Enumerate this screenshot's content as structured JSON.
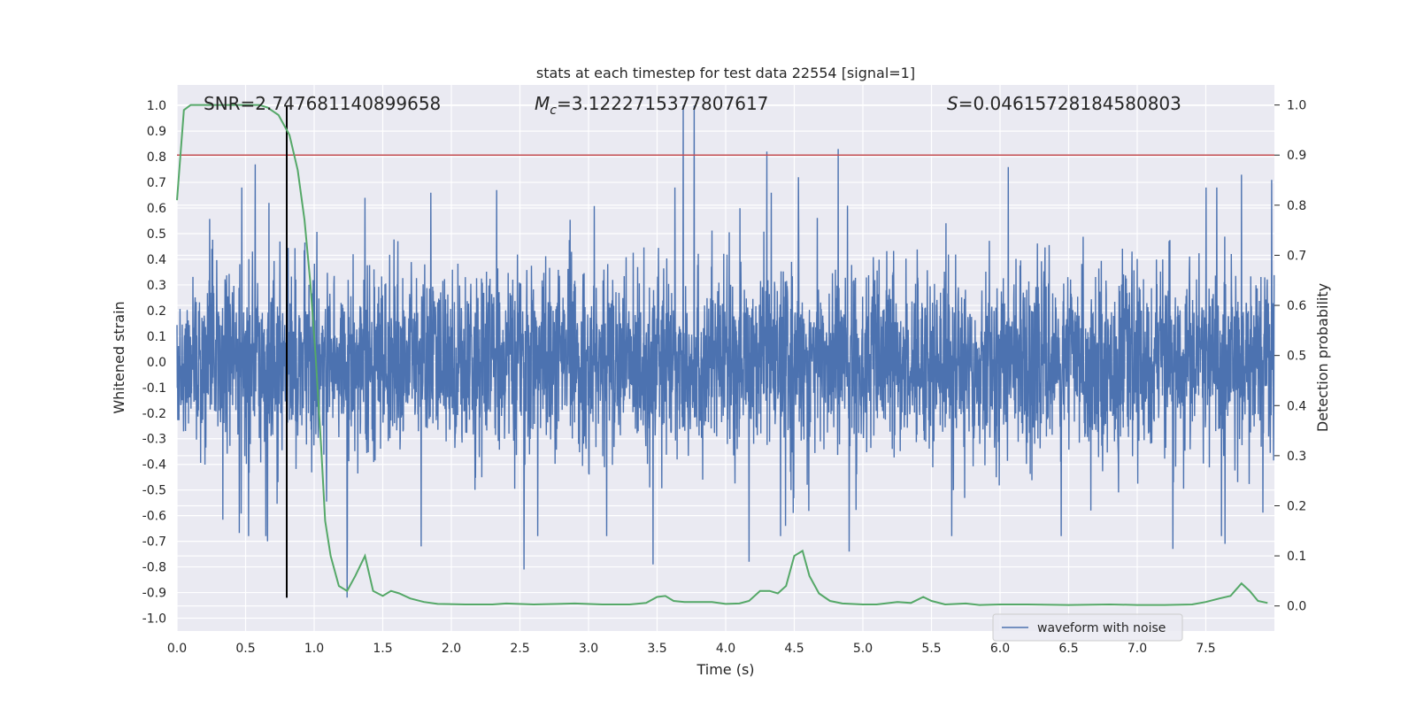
{
  "chart_data": {
    "type": "line",
    "title": "stats at each timestep for test data 22554 [signal=1]",
    "xlabel": "Time (s)",
    "ylabel": "Whitened strain",
    "y2label": "Detection probability",
    "xlim": [
      0,
      8.0
    ],
    "ylim": [
      -1.05,
      1.08
    ],
    "y2lim": [
      -0.05,
      1.04
    ],
    "xticks": [
      "0.0",
      "0.5",
      "1.0",
      "1.5",
      "2.0",
      "2.5",
      "3.0",
      "3.5",
      "4.0",
      "4.5",
      "5.0",
      "5.5",
      "6.0",
      "6.5",
      "7.0",
      "7.5"
    ],
    "yticks": [
      "-1.0",
      "-0.9",
      "-0.8",
      "-0.7",
      "-0.6",
      "-0.5",
      "-0.4",
      "-0.3",
      "-0.2",
      "-0.1",
      "0.0",
      "0.1",
      "0.2",
      "0.3",
      "0.4",
      "0.5",
      "0.6",
      "0.7",
      "0.8",
      "0.9",
      "1.0"
    ],
    "y2ticks": [
      "0.0",
      "0.1",
      "0.2",
      "0.3",
      "0.4",
      "0.5",
      "0.6",
      "0.7",
      "0.8",
      "0.9",
      "1.0"
    ],
    "grid": true,
    "legend": {
      "placement": "lower-right",
      "entries": [
        "waveform with noise"
      ]
    },
    "colors": {
      "waveform": "#4c72b0",
      "probability": "#55a868",
      "threshold": "#c44e52",
      "marker": "#000000",
      "background": "#eaeaf2",
      "grid": "#ffffff"
    },
    "annotations": {
      "snr": "SNR=2.747681140899658",
      "mc_symbol": "M",
      "mc_sub": "c",
      "mc_value": "=3.1222715377807617",
      "s_symbol": "S",
      "s_value": "=0.04615728184580803"
    },
    "threshold_probability": 0.9,
    "marker_time": 0.8,
    "series": [
      {
        "name": "waveform with noise",
        "axis": "left",
        "envelope_peaks": [
          {
            "x": 0.57,
            "y": 0.77
          },
          {
            "x": 0.67,
            "y": 0.62
          },
          {
            "x": 1.37,
            "y": 0.64
          },
          {
            "x": 1.85,
            "y": 0.66
          },
          {
            "x": 2.33,
            "y": 0.67
          },
          {
            "x": 3.69,
            "y": 1.0
          },
          {
            "x": 3.77,
            "y": 1.0
          },
          {
            "x": 3.63,
            "y": 0.68
          },
          {
            "x": 4.3,
            "y": 0.82
          },
          {
            "x": 4.53,
            "y": 0.72
          },
          {
            "x": 4.82,
            "y": 0.83
          },
          {
            "x": 6.06,
            "y": 0.76
          },
          {
            "x": 7.26,
            "y": 0.75
          },
          {
            "x": 7.76,
            "y": 0.73
          },
          {
            "x": 7.98,
            "y": 0.71
          },
          {
            "x": 0.66,
            "y": -0.7
          },
          {
            "x": 1.24,
            "y": -0.92
          },
          {
            "x": 2.53,
            "y": -0.81
          },
          {
            "x": 3.47,
            "y": -0.79
          },
          {
            "x": 4.17,
            "y": -0.78
          },
          {
            "x": 4.9,
            "y": -0.74
          },
          {
            "x": 7.26,
            "y": -0.73
          },
          {
            "x": 7.64,
            "y": -0.71
          },
          {
            "x": 1.78,
            "y": -0.72
          }
        ]
      },
      {
        "name": "",
        "axis": "right",
        "points": [
          [
            0.0,
            0.81
          ],
          [
            0.05,
            0.99
          ],
          [
            0.1,
            1.0
          ],
          [
            0.2,
            1.0
          ],
          [
            0.4,
            1.0
          ],
          [
            0.6,
            1.0
          ],
          [
            0.66,
            0.995
          ],
          [
            0.74,
            0.98
          ],
          [
            0.82,
            0.94
          ],
          [
            0.88,
            0.87
          ],
          [
            0.93,
            0.77
          ],
          [
            0.97,
            0.65
          ],
          [
            1.01,
            0.5
          ],
          [
            1.05,
            0.32
          ],
          [
            1.08,
            0.17
          ],
          [
            1.12,
            0.1
          ],
          [
            1.18,
            0.04
          ],
          [
            1.24,
            0.03
          ],
          [
            1.3,
            0.06
          ],
          [
            1.37,
            0.1
          ],
          [
            1.43,
            0.03
          ],
          [
            1.5,
            0.02
          ],
          [
            1.56,
            0.03
          ],
          [
            1.62,
            0.025
          ],
          [
            1.7,
            0.015
          ],
          [
            1.8,
            0.008
          ],
          [
            1.9,
            0.004
          ],
          [
            2.1,
            0.003
          ],
          [
            2.3,
            0.003
          ],
          [
            2.4,
            0.005
          ],
          [
            2.6,
            0.003
          ],
          [
            2.9,
            0.005
          ],
          [
            3.1,
            0.003
          ],
          [
            3.3,
            0.003
          ],
          [
            3.42,
            0.006
          ],
          [
            3.5,
            0.018
          ],
          [
            3.56,
            0.02
          ],
          [
            3.62,
            0.01
          ],
          [
            3.7,
            0.008
          ],
          [
            3.9,
            0.008
          ],
          [
            4.0,
            0.004
          ],
          [
            4.1,
            0.005
          ],
          [
            4.17,
            0.01
          ],
          [
            4.25,
            0.03
          ],
          [
            4.32,
            0.03
          ],
          [
            4.38,
            0.025
          ],
          [
            4.44,
            0.04
          ],
          [
            4.5,
            0.1
          ],
          [
            4.56,
            0.11
          ],
          [
            4.61,
            0.06
          ],
          [
            4.68,
            0.025
          ],
          [
            4.76,
            0.01
          ],
          [
            4.85,
            0.005
          ],
          [
            5.0,
            0.003
          ],
          [
            5.1,
            0.003
          ],
          [
            5.25,
            0.008
          ],
          [
            5.35,
            0.006
          ],
          [
            5.44,
            0.018
          ],
          [
            5.5,
            0.01
          ],
          [
            5.6,
            0.003
          ],
          [
            5.75,
            0.005
          ],
          [
            5.85,
            0.002
          ],
          [
            6.0,
            0.003
          ],
          [
            6.2,
            0.003
          ],
          [
            6.5,
            0.002
          ],
          [
            6.8,
            0.003
          ],
          [
            7.0,
            0.002
          ],
          [
            7.2,
            0.002
          ],
          [
            7.4,
            0.003
          ],
          [
            7.5,
            0.008
          ],
          [
            7.6,
            0.015
          ],
          [
            7.68,
            0.02
          ],
          [
            7.76,
            0.045
          ],
          [
            7.82,
            0.03
          ],
          [
            7.88,
            0.01
          ],
          [
            7.95,
            0.006
          ]
        ]
      }
    ]
  }
}
